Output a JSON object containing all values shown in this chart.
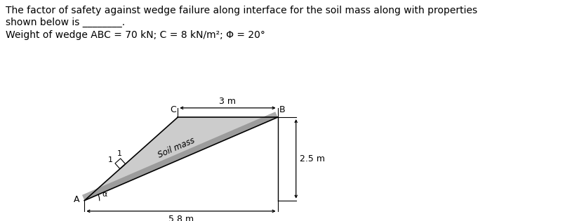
{
  "title_line1": "The factor of safety against wedge failure along interface for the soil mass along with properties",
  "title_line2": "shown below is ________.",
  "subtitle": "Weight of wedge ABC = 70 kN; C = 8 kN/m²; Φ = 20°",
  "fig_width": 8.05,
  "fig_height": 3.15,
  "dpi": 100,
  "bg_color": "#ffffff",
  "text_color": "#000000",
  "wedge_fill": "#cccccc",
  "wedge_shadow": "#888888",
  "A": [
    0.0,
    0.0
  ],
  "B": [
    5.8,
    2.5
  ],
  "C": [
    2.8,
    2.5
  ],
  "dim_3m_label": "3 m",
  "dim_58m_label": "5.8 m",
  "dim_25m_label": "2.5 m",
  "slope_label": "Soil mass",
  "angle_label": "α",
  "font_size_title": 10,
  "font_size_labels": 9,
  "font_size_dim": 9,
  "font_size_small": 8
}
